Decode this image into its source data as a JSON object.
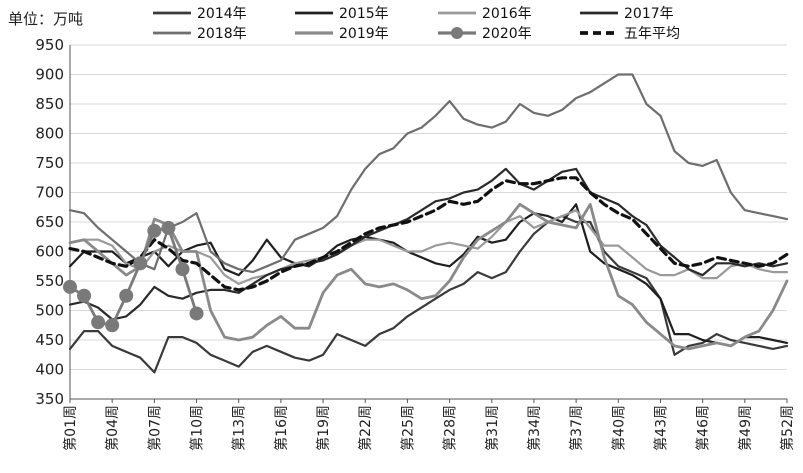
{
  "chart_data": {
    "type": "line",
    "unit_label": "单位：万吨",
    "ylim": [
      350,
      950
    ],
    "y_ticks": [
      350,
      400,
      450,
      500,
      550,
      600,
      650,
      700,
      750,
      800,
      850,
      900,
      950
    ],
    "x_tick_labels": [
      "第01周",
      "第04周",
      "第07周",
      "第10周",
      "第13周",
      "第16周",
      "第19周",
      "第22周",
      "第25周",
      "第28周",
      "第31周",
      "第34周",
      "第37周",
      "第40周",
      "第43周",
      "第46周",
      "第49周",
      "第52周"
    ],
    "grid": "horizontal",
    "legend_position": "top",
    "series": [
      {
        "name": "2014年",
        "color": "#3a3a3a",
        "width": 2.2,
        "dash": "",
        "markers": false,
        "values": [
          435,
          465,
          465,
          440,
          430,
          420,
          395,
          455,
          455,
          445,
          425,
          415,
          405,
          430,
          440,
          430,
          420,
          415,
          425,
          460,
          450,
          440,
          460,
          470,
          490,
          505,
          520,
          535,
          545,
          565,
          555,
          565,
          600,
          630,
          650,
          660,
          650,
          650,
          600,
          575,
          565,
          555,
          520,
          425,
          440,
          445,
          460,
          450,
          445,
          440,
          435,
          440
        ]
      },
      {
        "name": "2015年",
        "color": "#1f1f1f",
        "width": 2.2,
        "dash": "",
        "markers": false,
        "values": [
          575,
          600,
          600,
          600,
          580,
          590,
          600,
          575,
          600,
          610,
          615,
          570,
          560,
          585,
          620,
          590,
          580,
          575,
          590,
          610,
          620,
          625,
          620,
          615,
          600,
          590,
          580,
          575,
          595,
          625,
          615,
          620,
          650,
          665,
          660,
          650,
          680,
          600,
          580,
          570,
          560,
          545,
          520,
          460,
          460,
          450,
          445,
          440,
          455,
          455,
          450,
          445
        ]
      },
      {
        "name": "2016年",
        "color": "#9a9a9a",
        "width": 2.2,
        "dash": "",
        "markers": false,
        "values": [
          615,
          620,
          620,
          610,
          580,
          570,
          600,
          610,
          600,
          600,
          590,
          560,
          545,
          555,
          560,
          570,
          580,
          585,
          590,
          600,
          610,
          620,
          620,
          610,
          600,
          600,
          610,
          615,
          610,
          605,
          625,
          650,
          660,
          640,
          650,
          660,
          670,
          640,
          610,
          610,
          590,
          570,
          560,
          560,
          570,
          555,
          555,
          575,
          580,
          570,
          565,
          565
        ]
      },
      {
        "name": "2017年",
        "color": "#2a2a2a",
        "width": 2.2,
        "dash": "",
        "markers": false,
        "values": [
          510,
          515,
          505,
          485,
          490,
          510,
          540,
          525,
          520,
          530,
          535,
          535,
          530,
          545,
          560,
          570,
          575,
          580,
          585,
          595,
          610,
          625,
          635,
          645,
          655,
          670,
          685,
          690,
          700,
          705,
          720,
          740,
          715,
          705,
          720,
          735,
          740,
          700,
          690,
          680,
          660,
          645,
          610,
          590,
          570,
          560,
          580,
          580,
          575,
          580,
          575,
          580
        ]
      },
      {
        "name": "2018年",
        "color": "#6e6e6e",
        "width": 2.2,
        "dash": "",
        "markers": false,
        "values": [
          670,
          665,
          640,
          620,
          600,
          580,
          570,
          640,
          650,
          665,
          600,
          580,
          570,
          565,
          575,
          585,
          620,
          630,
          640,
          660,
          705,
          740,
          765,
          775,
          800,
          810,
          830,
          855,
          825,
          815,
          810,
          820,
          850,
          835,
          830,
          840,
          860,
          870,
          885,
          900,
          900,
          850,
          830,
          770,
          750,
          745,
          755,
          700,
          670,
          665,
          660,
          655
        ]
      },
      {
        "name": "2019年",
        "color": "#8a8a8a",
        "width": 2.8,
        "dash": "",
        "markers": false,
        "values": [
          615,
          620,
          600,
          580,
          560,
          575,
          655,
          645,
          600,
          600,
          500,
          455,
          450,
          455,
          475,
          490,
          470,
          470,
          530,
          560,
          570,
          545,
          540,
          545,
          535,
          520,
          525,
          550,
          590,
          620,
          635,
          650,
          680,
          665,
          650,
          645,
          640,
          680,
          590,
          525,
          510,
          480,
          460,
          440,
          435,
          440,
          445,
          440,
          455,
          465,
          500,
          550
        ]
      },
      {
        "name": "2020年",
        "color": "#7a7a7a",
        "width": 2.8,
        "dash": "",
        "markers": true,
        "values": [
          540,
          525,
          480,
          475,
          525,
          580,
          635,
          640,
          570,
          495
        ]
      },
      {
        "name": "五年平均",
        "color": "#111111",
        "width": 3.2,
        "dash": "8,5",
        "markers": false,
        "values": [
          605,
          600,
          590,
          580,
          575,
          590,
          620,
          605,
          585,
          580,
          560,
          540,
          535,
          540,
          550,
          565,
          575,
          580,
          590,
          600,
          615,
          630,
          640,
          645,
          650,
          660,
          670,
          685,
          680,
          685,
          705,
          720,
          715,
          715,
          720,
          725,
          725,
          700,
          680,
          665,
          655,
          630,
          605,
          580,
          575,
          580,
          590,
          585,
          580,
          575,
          580,
          595
        ]
      }
    ]
  }
}
